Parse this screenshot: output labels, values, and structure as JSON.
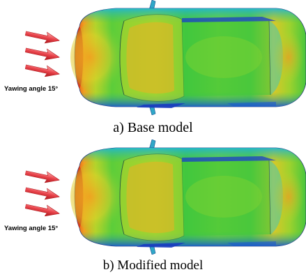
{
  "panels": [
    {
      "yaw_label": "Yawing angle 15°",
      "caption": "a) Base model"
    },
    {
      "yaw_label": "Yawing angle 15°",
      "caption": "b) Modified model"
    }
  ],
  "colors": {
    "front_red": "#d83a10",
    "hot_orange": "#f0901c",
    "warm_yellow": "#e2d22a",
    "mid_green": "#38c23c",
    "cool_cyan": "#2fc0d8",
    "deep_blue": "#1a3ccc",
    "arrow_red": "#e8424a"
  },
  "icons": {
    "flow_arrow": "arrow-right-icon",
    "car": "car-top-view"
  }
}
